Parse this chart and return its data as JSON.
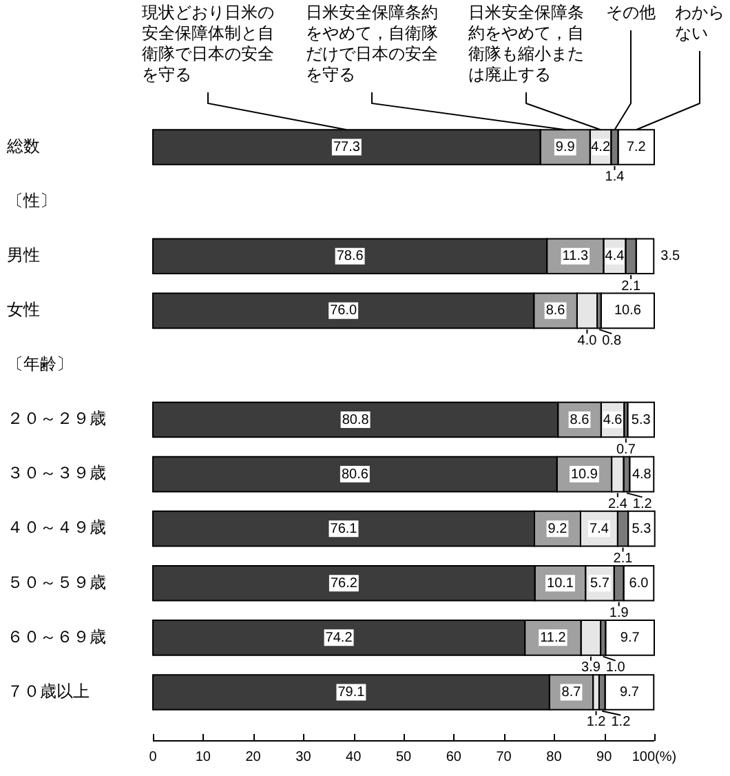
{
  "chart_data": {
    "type": "bar",
    "orientation": "horizontal",
    "stacked": true,
    "categories": [
      "総数",
      "〔性〕",
      "男性",
      "女性",
      "〔年齢〕",
      "２０～２９歳",
      "３０～３９歳",
      "４０～４９歳",
      "５０～５９歳",
      "６０～６９歳",
      "７０歳以上"
    ],
    "series": [
      {
        "name": "現状どおり日米の安全保障体制と自衛隊で日本の安全を守る",
        "color": "#3c3c3c",
        "values": [
          77.3,
          null,
          78.6,
          76.0,
          null,
          80.8,
          80.6,
          76.1,
          76.2,
          74.2,
          79.1
        ],
        "value_labels": [
          "77.3",
          null,
          "78.6",
          "76.0",
          null,
          "80.8",
          "80.6",
          "76.1",
          "76.2",
          "74.2",
          "79.1"
        ]
      },
      {
        "name": "日米安全保障条約をやめて，自衛隊だけで日本の安全を守る",
        "color": "#a0a0a0",
        "values": [
          9.9,
          null,
          11.3,
          8.6,
          null,
          8.6,
          10.9,
          9.2,
          10.1,
          11.2,
          8.7
        ],
        "value_labels": [
          "9.9",
          null,
          "11.3",
          "8.6",
          null,
          "8.6",
          "10.9",
          "9.2",
          "10.1",
          "11.2",
          "8.7"
        ]
      },
      {
        "name": "日米安全保障条約をやめて，自衛隊も縮小または廃止する",
        "color": "#e6e6e6",
        "values": [
          4.2,
          null,
          4.4,
          4.0,
          null,
          4.6,
          2.4,
          7.4,
          5.7,
          3.9,
          1.2
        ],
        "value_labels": [
          "4.2",
          null,
          "4.4",
          "4.0",
          null,
          "4.6",
          "2.4",
          "7.4",
          "5.7",
          "3.9",
          "1.2"
        ]
      },
      {
        "name": "その他",
        "color": "#7a7a7a",
        "values": [
          1.4,
          null,
          2.1,
          0.8,
          null,
          0.7,
          1.2,
          2.1,
          1.9,
          1.0,
          1.2
        ],
        "value_labels": [
          "1.4",
          null,
          "2.1",
          "0.8",
          null,
          "0.7",
          "1.2",
          "2.1",
          "1.9",
          "1.0",
          "1.2"
        ]
      },
      {
        "name": "わからない",
        "color": "#ffffff",
        "values": [
          7.2,
          null,
          3.5,
          10.6,
          null,
          5.3,
          4.8,
          5.3,
          6.0,
          9.7,
          9.7
        ],
        "value_labels": [
          "7.2",
          null,
          "3.5",
          "10.6",
          null,
          "5.3",
          "4.8",
          "5.3",
          "6.0",
          "9.7",
          "9.7"
        ]
      }
    ],
    "xlim": [
      0,
      100
    ],
    "xticks": [
      0,
      10,
      20,
      30,
      40,
      50,
      60,
      70,
      80,
      90,
      {
        "value": 100,
        "label": "100(%)"
      }
    ],
    "legend": "top"
  }
}
